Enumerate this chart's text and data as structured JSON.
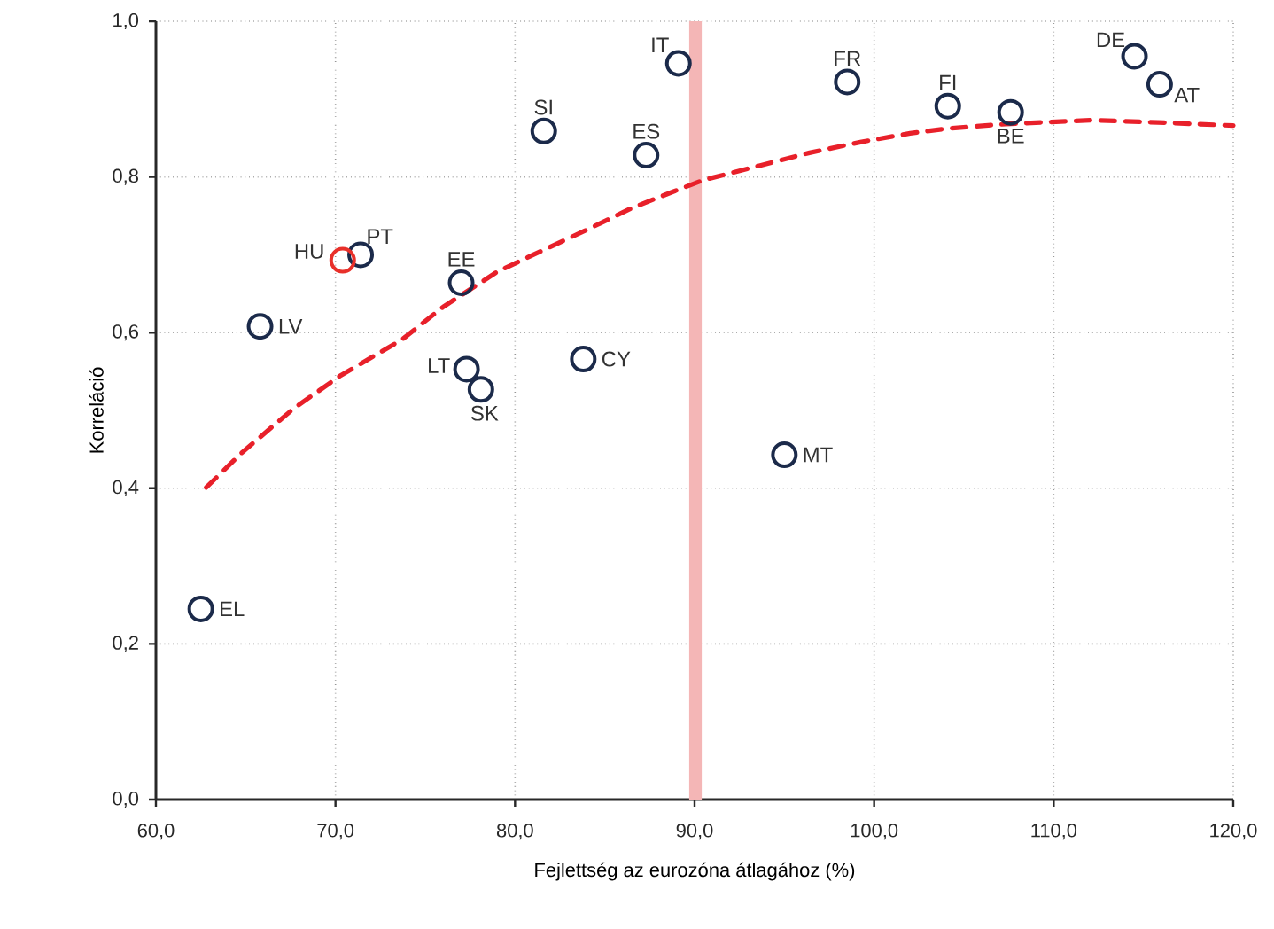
{
  "chart_data": {
    "type": "scatter",
    "xlabel": "Fejlettség az eurozóna átlagához (%)",
    "ylabel": "Korreláció",
    "xlim": [
      60,
      120
    ],
    "ylim": [
      0,
      1
    ],
    "xticks": [
      {
        "value": 60,
        "label": "60,0"
      },
      {
        "value": 70,
        "label": "70,0"
      },
      {
        "value": 80,
        "label": "80,0"
      },
      {
        "value": 90,
        "label": "90,0"
      },
      {
        "value": 100,
        "label": "100,0"
      },
      {
        "value": 110,
        "label": "110,0"
      },
      {
        "value": 120,
        "label": "120,0"
      }
    ],
    "yticks": [
      {
        "value": 0,
        "label": "0,0"
      },
      {
        "value": 0.2,
        "label": "0,2"
      },
      {
        "value": 0.4,
        "label": "0,4"
      },
      {
        "value": 0.6,
        "label": "0,6"
      },
      {
        "value": 0.8,
        "label": "0,8"
      },
      {
        "value": 1,
        "label": "1,0"
      }
    ],
    "grid": true,
    "marker": "circle",
    "series": [
      {
        "color": "#1b2a4a",
        "x": [
          62.5,
          65.8,
          71.4,
          77.0,
          77.3,
          78.1,
          81.6,
          83.8,
          87.3,
          89.1,
          95.0,
          98.5,
          104.1,
          107.6,
          114.5,
          115.9
        ],
        "values": [
          0.245,
          0.608,
          0.7,
          0.664,
          0.553,
          0.527,
          0.859,
          0.566,
          0.828,
          0.946,
          0.443,
          0.922,
          0.891,
          0.883,
          0.955,
          0.919
        ]
      },
      {
        "color": "#e8302a",
        "x": [
          70.4
        ],
        "values": [
          0.693
        ]
      },
      {
        "type": "line",
        "marker": "none",
        "line_style": "dashed",
        "color": "#e8202a",
        "x": [
          62.8,
          64.8,
          67.7,
          70.3,
          73.7,
          76.0,
          79.0,
          81.2,
          83.9,
          86.5,
          88.8,
          90.5,
          93.7,
          96.4,
          99.3,
          102.0,
          104.0,
          107.3,
          112.2,
          115.8,
          120.0
        ],
        "values": [
          0.401,
          0.446,
          0.503,
          0.545,
          0.591,
          0.633,
          0.678,
          0.702,
          0.731,
          0.76,
          0.781,
          0.796,
          0.815,
          0.831,
          0.845,
          0.856,
          0.862,
          0.868,
          0.873,
          0.87,
          0.866
        ]
      }
    ],
    "bands": [
      {
        "axis": "x",
        "from": 89.7,
        "to": 90.4,
        "color": "#f4b6b6"
      }
    ],
    "annotations": [
      {
        "text": "EL",
        "x": 62.5,
        "y": 0.245
      },
      {
        "text": "LV",
        "x": 65.8,
        "y": 0.608
      },
      {
        "text": "HU",
        "x": 70.4,
        "y": 0.693
      },
      {
        "text": "PT",
        "x": 71.4,
        "y": 0.7
      },
      {
        "text": "EE",
        "x": 77.0,
        "y": 0.664
      },
      {
        "text": "LT",
        "x": 77.3,
        "y": 0.553
      },
      {
        "text": "SK",
        "x": 78.1,
        "y": 0.527
      },
      {
        "text": "SI",
        "x": 81.6,
        "y": 0.859
      },
      {
        "text": "CY",
        "x": 83.8,
        "y": 0.566
      },
      {
        "text": "ES",
        "x": 87.3,
        "y": 0.828
      },
      {
        "text": "IT",
        "x": 89.1,
        "y": 0.946
      },
      {
        "text": "MT",
        "x": 95.0,
        "y": 0.443
      },
      {
        "text": "FR",
        "x": 98.5,
        "y": 0.922
      },
      {
        "text": "FI",
        "x": 104.1,
        "y": 0.891
      },
      {
        "text": "BE",
        "x": 107.6,
        "y": 0.883
      },
      {
        "text": "DE",
        "x": 114.5,
        "y": 0.955
      },
      {
        "text": "AT",
        "x": 115.9,
        "y": 0.919
      }
    ]
  }
}
